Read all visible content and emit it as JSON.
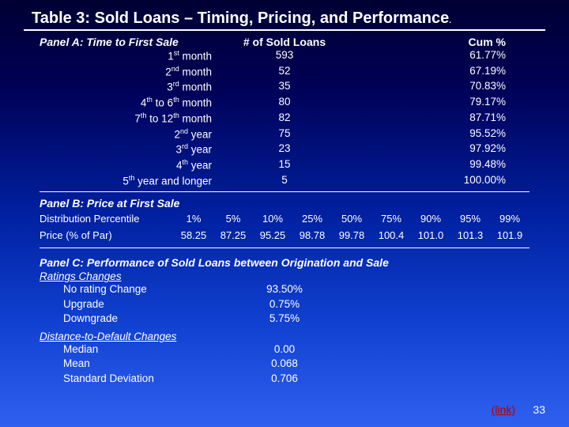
{
  "title_main": "Table 3: Sold Loans – Timing, Pricing, and Performance",
  "title_period": ".",
  "panelA": {
    "header": "Panel A: Time to First Sale",
    "col2": "# of Sold Loans",
    "col3": "Cum %",
    "rows": [
      {
        "label_pre": "1",
        "sup": "st",
        "label_post": " month",
        "count": "593",
        "cum": "61.77%"
      },
      {
        "label_pre": "2",
        "sup": "nd",
        "label_post": " month",
        "count": "52",
        "cum": "67.19%"
      },
      {
        "label_pre": "3",
        "sup": "rd",
        "label_post": " month",
        "count": "35",
        "cum": "70.83%"
      },
      {
        "label_pre": "4",
        "sup": "th",
        "label_post": " to 6",
        "sup2": "th",
        "label_post2": " month",
        "count": "80",
        "cum": "79.17%"
      },
      {
        "label_pre": "7",
        "sup": "th",
        "label_post": " to 12",
        "sup2": "th",
        "label_post2": " month",
        "count": "82",
        "cum": "87.71%"
      },
      {
        "label_pre": "2",
        "sup": "nd",
        "label_post": " year",
        "count": "75",
        "cum": "95.52%"
      },
      {
        "label_pre": "3",
        "sup": "rd",
        "label_post": " year",
        "count": "23",
        "cum": "97.92%"
      },
      {
        "label_pre": "4",
        "sup": "th",
        "label_post": " year",
        "count": "15",
        "cum": "99.48%"
      },
      {
        "label_pre": "5",
        "sup": "th",
        "label_post": " year and longer",
        "count": "5",
        "cum": "100.00%"
      }
    ]
  },
  "panelB": {
    "header": "Panel B: Price at First Sale",
    "rowLabels": [
      "Distribution Percentile",
      "Price (% of Par)"
    ],
    "percentiles": [
      "1%",
      "5%",
      "10%",
      "25%",
      "50%",
      "75%",
      "90%",
      "95%",
      "99%"
    ],
    "prices": [
      "58.25",
      "87.25",
      "95.25",
      "98.78",
      "99.78",
      "100.4",
      "101.0",
      "101.3",
      "101.9"
    ]
  },
  "panelC": {
    "header": "Panel C: Performance of Sold Loans between Origination and Sale",
    "sub1": "Ratings Changes",
    "ratings": [
      {
        "label": "No rating Change",
        "val": "93.50%"
      },
      {
        "label": "Upgrade",
        "val": "0.75%"
      },
      {
        "label": "Downgrade",
        "val": "5.75%"
      }
    ],
    "sub2": "Distance-to-Default Changes",
    "dtd": [
      {
        "label": "Median",
        "val": "0.00"
      },
      {
        "label": "Mean",
        "val": "0.068"
      },
      {
        "label": "Standard Deviation",
        "val": "0.706"
      }
    ]
  },
  "footer": {
    "link": "(link)",
    "page": "33"
  }
}
